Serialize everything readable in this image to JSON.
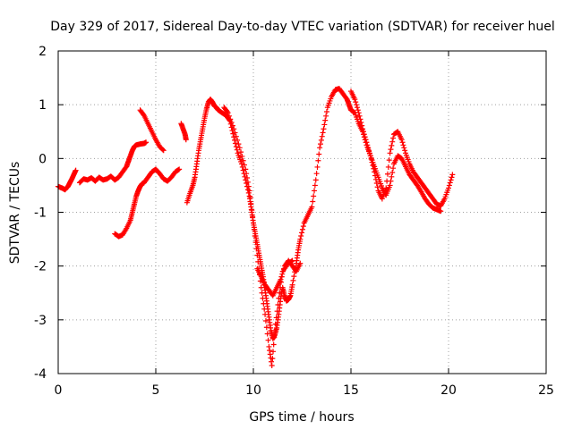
{
  "chart_data": {
    "type": "scatter",
    "title": "Day 329 of 2017, Sidereal Day-to-day VTEC variation (SDTVAR) for receiver huel",
    "xlabel": "GPS time / hours",
    "ylabel": "SDTVAR / TECUs",
    "xlim": [
      0,
      25
    ],
    "ylim": [
      -4,
      2
    ],
    "xticks": [
      0,
      5,
      10,
      15,
      20,
      25
    ],
    "yticks": [
      -4,
      -3,
      -2,
      -1,
      0,
      1,
      2
    ],
    "grid": true,
    "marker": "+",
    "color": "#ff0000",
    "segments": [
      {
        "x": [
          0.0,
          0.2,
          0.35,
          0.5,
          0.6,
          0.7,
          0.8,
          0.9
        ],
        "y": [
          -0.52,
          -0.55,
          -0.58,
          -0.52,
          -0.45,
          -0.38,
          -0.3,
          -0.22
        ]
      },
      {
        "x": [
          1.1,
          1.3,
          1.5,
          1.7,
          1.9,
          2.1,
          2.3,
          2.5,
          2.7,
          2.9,
          3.1,
          3.3,
          3.5,
          3.6,
          3.7,
          3.8,
          3.9,
          4.0,
          4.2,
          4.4,
          4.5
        ],
        "y": [
          -0.45,
          -0.38,
          -0.4,
          -0.36,
          -0.42,
          -0.35,
          -0.4,
          -0.38,
          -0.33,
          -0.4,
          -0.35,
          -0.25,
          -0.15,
          -0.05,
          0.05,
          0.15,
          0.22,
          0.25,
          0.27,
          0.28,
          0.3
        ]
      },
      {
        "x": [
          2.9,
          3.1,
          3.3,
          3.5,
          3.7,
          3.8,
          3.9,
          4.0,
          4.1,
          4.2,
          4.3,
          4.4,
          4.6,
          4.8,
          5.0,
          5.2,
          5.4,
          5.6,
          5.8,
          6.0,
          6.2
        ],
        "y": [
          -1.4,
          -1.45,
          -1.42,
          -1.3,
          -1.15,
          -1.0,
          -0.85,
          -0.7,
          -0.6,
          -0.52,
          -0.47,
          -0.45,
          -0.35,
          -0.25,
          -0.2,
          -0.28,
          -0.38,
          -0.42,
          -0.35,
          -0.25,
          -0.2
        ]
      },
      {
        "x": [
          4.2,
          4.4,
          4.6,
          4.8,
          5.0,
          5.2,
          5.4
        ],
        "y": [
          0.9,
          0.8,
          0.65,
          0.5,
          0.35,
          0.22,
          0.15
        ]
      },
      {
        "x": [
          6.3,
          6.4,
          6.5,
          6.55
        ],
        "y": [
          0.65,
          0.55,
          0.45,
          0.35
        ]
      },
      {
        "x": [
          6.6,
          6.75,
          6.9,
          7.0,
          7.1,
          7.2,
          7.3,
          7.4,
          7.5,
          7.6,
          7.7,
          7.8,
          7.9,
          8.0,
          8.1,
          8.2,
          8.4,
          8.6,
          8.8,
          9.0,
          9.2,
          9.4,
          9.6,
          9.8,
          9.9,
          10.0,
          10.1,
          10.2,
          10.3,
          10.4,
          10.5,
          10.6,
          10.7,
          10.8,
          10.9,
          11.0,
          11.1,
          11.2,
          11.3,
          11.4,
          11.5,
          11.6,
          11.7,
          11.8,
          11.9,
          12.0,
          12.2,
          12.3,
          12.4,
          12.6,
          12.8,
          13.0,
          13.2,
          13.4,
          13.6,
          13.8,
          14.0,
          14.2,
          14.4,
          14.6,
          14.8,
          14.9,
          15.0,
          15.2,
          15.4,
          15.6,
          15.8,
          16.0,
          16.2,
          16.4,
          16.6,
          16.8,
          17.0,
          17.2,
          17.4,
          17.6,
          17.8,
          18.0,
          18.2,
          18.4,
          18.6,
          18.8,
          19.0,
          19.2,
          19.4,
          19.6,
          19.8,
          20.0,
          20.2
        ],
        "y": [
          -0.82,
          -0.65,
          -0.5,
          -0.35,
          -0.1,
          0.15,
          0.35,
          0.55,
          0.75,
          0.92,
          1.05,
          1.1,
          1.05,
          0.98,
          0.95,
          0.9,
          0.85,
          0.8,
          0.7,
          0.4,
          0.1,
          -0.1,
          -0.4,
          -0.7,
          -0.95,
          -1.2,
          -1.4,
          -1.6,
          -1.8,
          -2.0,
          -2.2,
          -2.45,
          -2.7,
          -2.95,
          -3.2,
          -3.35,
          -3.28,
          -3.15,
          -2.9,
          -2.6,
          -2.4,
          -2.55,
          -2.65,
          -2.62,
          -2.55,
          -2.35,
          -1.95,
          -1.7,
          -1.5,
          -1.2,
          -1.05,
          -0.9,
          -0.4,
          0.2,
          0.55,
          0.95,
          1.15,
          1.28,
          1.3,
          1.2,
          1.1,
          1.0,
          0.9,
          0.85,
          0.65,
          0.5,
          0.25,
          0.05,
          -0.25,
          -0.6,
          -0.75,
          -0.55,
          0.1,
          0.45,
          0.5,
          0.35,
          0.1,
          -0.1,
          -0.25,
          -0.35,
          -0.45,
          -0.55,
          -0.65,
          -0.75,
          -0.85,
          -0.88,
          -0.75,
          -0.55,
          -0.3
        ]
      },
      {
        "x": [
          8.5,
          8.7,
          9.0,
          9.3,
          9.6,
          9.8,
          10.0,
          10.2,
          10.4,
          10.6,
          10.8,
          10.95,
          11.1,
          11.3,
          11.5,
          11.8,
          12.0
        ],
        "y": [
          0.95,
          0.85,
          0.55,
          0.2,
          -0.2,
          -0.6,
          -1.2,
          -1.8,
          -2.4,
          -2.9,
          -3.5,
          -3.85,
          -3.2,
          -2.6,
          -2.1,
          -1.95,
          -1.9
        ]
      },
      {
        "x": [
          10.2,
          10.4,
          10.6,
          10.8,
          11.0,
          11.2,
          11.4,
          11.6,
          11.8,
          12.0,
          12.2,
          12.4
        ],
        "y": [
          -2.05,
          -2.2,
          -2.35,
          -2.45,
          -2.55,
          -2.4,
          -2.25,
          -2.0,
          -1.9,
          -2.0,
          -2.1,
          -1.95
        ]
      },
      {
        "x": [
          15.0,
          15.2,
          15.4,
          15.6,
          15.8,
          16.0,
          16.2,
          16.4,
          16.6,
          16.8,
          17.0,
          17.2,
          17.4,
          17.6,
          17.8,
          18.0,
          18.2,
          18.4,
          18.6,
          18.8,
          19.0,
          19.2,
          19.4,
          19.6
        ],
        "y": [
          1.25,
          1.1,
          0.85,
          0.55,
          0.3,
          0.05,
          -0.15,
          -0.35,
          -0.55,
          -0.68,
          -0.5,
          -0.1,
          0.05,
          0.0,
          -0.15,
          -0.3,
          -0.4,
          -0.5,
          -0.62,
          -0.75,
          -0.85,
          -0.92,
          -0.95,
          -0.98
        ]
      }
    ]
  }
}
